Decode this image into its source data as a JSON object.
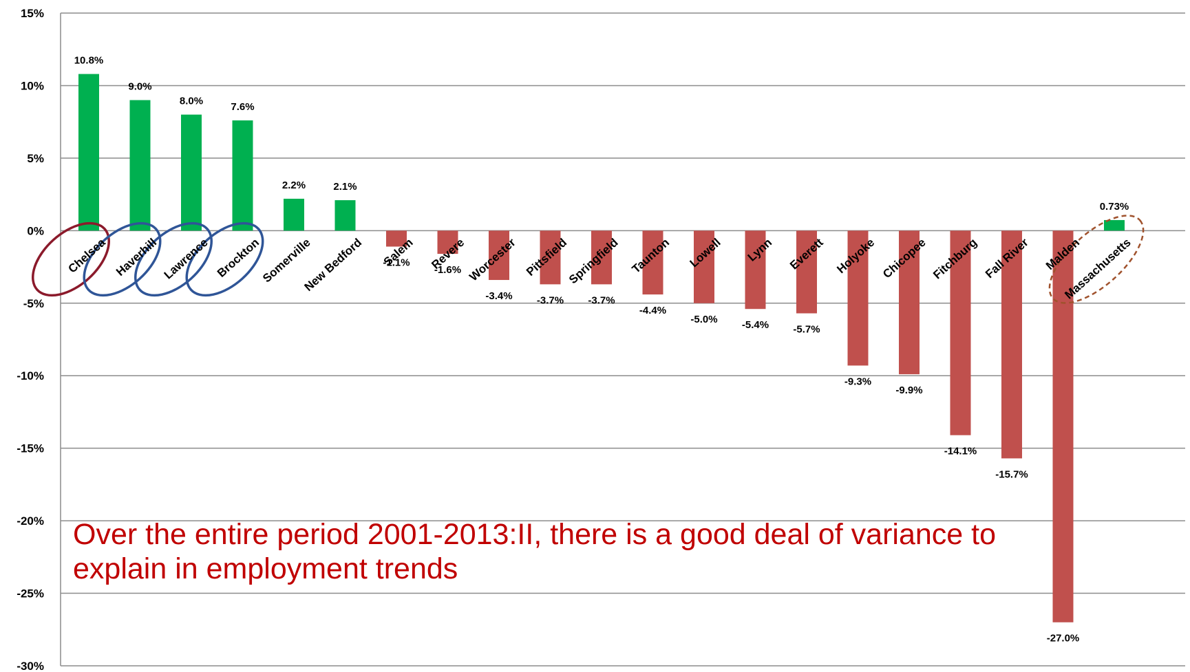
{
  "chart_data": {
    "type": "bar",
    "categories": [
      "Chelsea",
      "Haverhill",
      "Lawrence",
      "Brockton",
      "Somerville",
      "New Bedford",
      "Salem",
      "Revere",
      "Worcester",
      "Pittsfield",
      "Springfield",
      "Taunton",
      "Lowell",
      "Lynn",
      "Everett",
      "Holyoke",
      "Chicopee",
      "Fitchburg",
      "Fall River",
      "Malden",
      "Massachusetts"
    ],
    "values": [
      10.8,
      9.0,
      8.0,
      7.6,
      2.2,
      2.1,
      -1.1,
      -1.6,
      -3.4,
      -3.7,
      -3.7,
      -4.4,
      -5.0,
      -5.4,
      -5.7,
      -9.3,
      -9.9,
      -14.1,
      -15.7,
      -27.0,
      0.73
    ],
    "data_labels": [
      "10.8%",
      "9.0%",
      "8.0%",
      "7.6%",
      "2.2%",
      "2.1%",
      "-1.1%",
      "-1.6%",
      "-3.4%",
      "-3.7%",
      "-3.7%",
      "-4.4%",
      "-5.0%",
      "-5.4%",
      "-5.7%",
      "-9.3%",
      "-9.9%",
      "-14.1%",
      "-15.7%",
      "-27.0%",
      "0.73%"
    ],
    "ylim": [
      -30,
      15
    ],
    "yticks": [
      15,
      10,
      5,
      0,
      -5,
      -10,
      -15,
      -20,
      -25,
      -30
    ],
    "ytick_labels": [
      "15%",
      "10%",
      "5%",
      "0%",
      "-5%",
      "-10%",
      "-15%",
      "-20%",
      "-25%",
      "-30%"
    ],
    "grid": true,
    "colors": {
      "positive": "#00b050",
      "negative": "#c0504d"
    },
    "highlights": [
      {
        "category": "Chelsea",
        "style": "solid",
        "color": "#8b1a2b"
      },
      {
        "category": "Haverhill",
        "style": "solid",
        "color": "#2f5597"
      },
      {
        "category": "Lawrence",
        "style": "solid",
        "color": "#2f5597"
      },
      {
        "category": "Brockton",
        "style": "solid",
        "color": "#2f5597"
      },
      {
        "category": "Massachusetts",
        "style": "dashed",
        "color": "#a0522d"
      }
    ],
    "annotation": "Over the entire period 2001-2013:II, there is a good deal of variance to explain in employment trends",
    "annotation_color": "#c00000"
  }
}
